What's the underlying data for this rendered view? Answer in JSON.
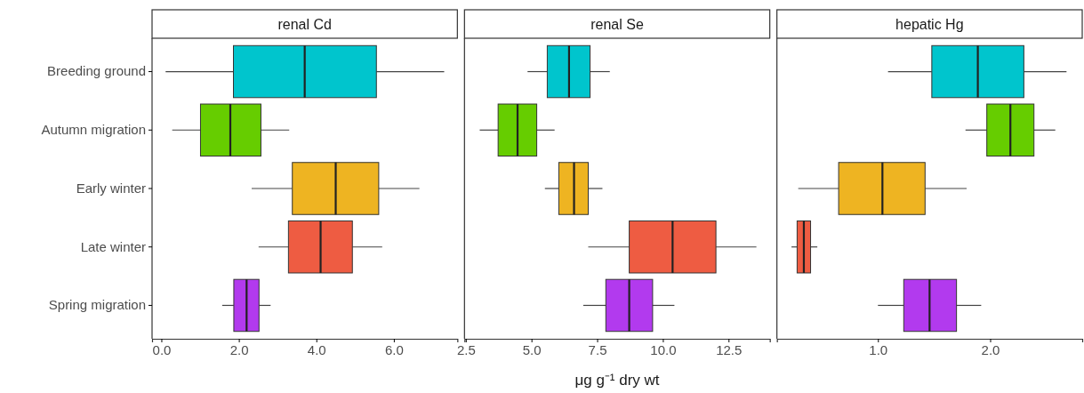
{
  "chart_data": [
    {
      "type": "box",
      "orientation": "horizontal",
      "title": "renal Cd",
      "categories": [
        "Breeding ground",
        "Autumn migration",
        "Early winter",
        "Late winter",
        "Spring migration"
      ],
      "colors": [
        "#00c5cd",
        "#66cd00",
        "#eeb422",
        "#ee5c42",
        "#b23aee"
      ],
      "boxes": [
        {
          "low": 0.11,
          "q1": 1.86,
          "median": 3.7,
          "q3": 5.55,
          "high": 7.3
        },
        {
          "low": 0.28,
          "q1": 1.01,
          "median": 1.78,
          "q3": 2.57,
          "high": 3.3
        },
        {
          "low": 2.33,
          "q1": 3.38,
          "median": 4.5,
          "q3": 5.61,
          "high": 6.66
        },
        {
          "low": 2.51,
          "q1": 3.28,
          "median": 4.11,
          "q3": 4.93,
          "high": 5.7
        },
        {
          "low": 1.57,
          "q1": 1.87,
          "median": 2.2,
          "q3": 2.52,
          "high": 2.82
        }
      ],
      "xlim": [
        -0.24,
        7.64
      ],
      "xticks": [
        {
          "value": 0,
          "label": "0.0"
        },
        {
          "value": 2,
          "label": "2.0"
        },
        {
          "value": 4,
          "label": "4.0"
        },
        {
          "value": 6,
          "label": "6.0"
        }
      ]
    },
    {
      "type": "box",
      "orientation": "horizontal",
      "title": "renal Se",
      "xlabel": "μg g⁻¹ dry wt",
      "categories": [
        "Breeding ground",
        "Autumn migration",
        "Early winter",
        "Late winter",
        "Spring migration"
      ],
      "colors": [
        "#00c5cd",
        "#66cd00",
        "#eeb422",
        "#ee5c42",
        "#b23aee"
      ],
      "tick_labels": "x",
      "boxes": [
        {
          "low": 4.85,
          "q1": 5.6,
          "median": 6.43,
          "q3": 7.23,
          "high": 7.98
        },
        {
          "low": 3.03,
          "q1": 3.73,
          "median": 4.47,
          "q3": 5.2,
          "high": 5.88
        },
        {
          "low": 5.51,
          "q1": 6.04,
          "median": 6.62,
          "q3": 7.16,
          "high": 7.7
        },
        {
          "low": 7.16,
          "q1": 8.72,
          "median": 10.37,
          "q3": 12.02,
          "high": 13.56
        },
        {
          "low": 6.97,
          "q1": 7.83,
          "median": 8.72,
          "q3": 9.61,
          "high": 10.44
        }
      ],
      "xlim": [
        2.45,
        14.07
      ],
      "xticks": [
        2.5,
        {
          "value": 5,
          "label": "5.0"
        },
        7.5,
        {
          "value": 10,
          "label": "10.0"
        },
        12.5
      ]
    },
    {
      "type": "box",
      "orientation": "horizontal",
      "title": "hepatic Hg",
      "categories": [
        "Breeding ground",
        "Autumn migration",
        "Early winter",
        "Late winter",
        "Spring migration"
      ],
      "colors": [
        "#00c5cd",
        "#66cd00",
        "#eeb422",
        "#ee5c42",
        "#b23aee"
      ],
      "tick_labels": "x",
      "boxes": [
        {
          "low": 1.09,
          "q1": 1.48,
          "median": 1.89,
          "q3": 2.3,
          "high": 2.68
        },
        {
          "low": 1.78,
          "q1": 1.97,
          "median": 2.18,
          "q3": 2.39,
          "high": 2.58
        },
        {
          "low": 0.29,
          "q1": 0.65,
          "median": 1.04,
          "q3": 1.42,
          "high": 1.79
        },
        {
          "low": 0.23,
          "q1": 0.28,
          "median": 0.34,
          "q3": 0.4,
          "high": 0.46
        },
        {
          "low": 1.0,
          "q1": 1.23,
          "median": 1.46,
          "q3": 1.7,
          "high": 1.92
        }
      ],
      "xlim": [
        0.1,
        2.82
      ],
      "xticks": [
        {
          "value": 1,
          "label": "1.0"
        },
        {
          "value": 2,
          "label": "2.0"
        }
      ]
    }
  ]
}
